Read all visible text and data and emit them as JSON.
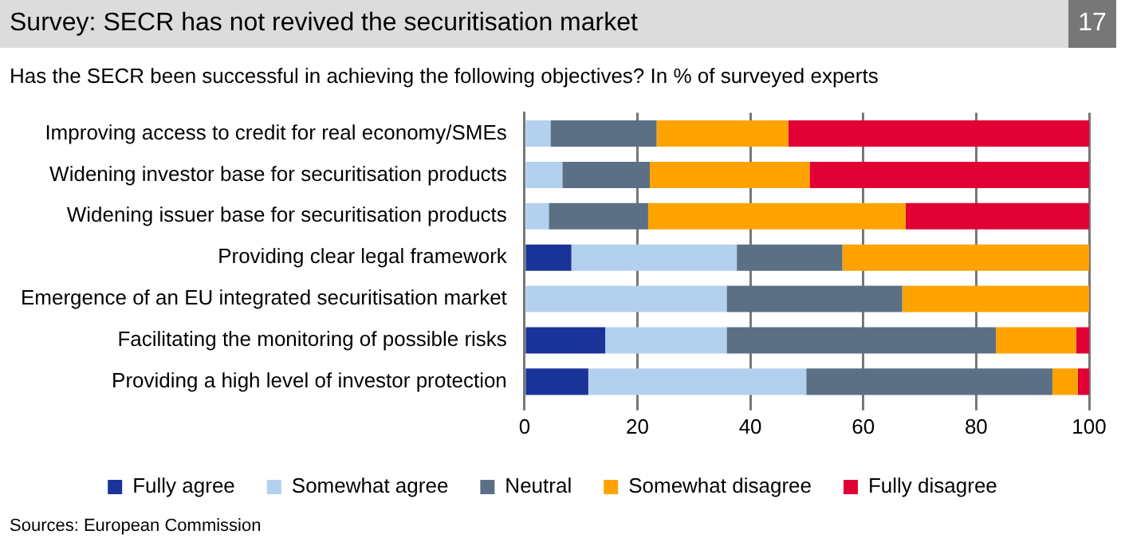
{
  "chart_data": {
    "type": "bar",
    "orientation": "horizontal",
    "stacked": true,
    "title": "Survey: SECR has not revived the securitisation market",
    "subtitle": "Has the SECR been successful in achieving the following objectives? In % of surveyed experts",
    "categories": [
      "Improving access to credit for real economy/SMEs",
      "Widening investor base for securitisation products",
      "Widening issuer base for securitisation products",
      "Providing clear legal framework",
      "Emergence of an EU integrated securitisation market",
      "Facilitating the monitoring of possible risks",
      "Providing a high level of investor protection"
    ],
    "series": [
      {
        "name": "Fully agree",
        "color": "#1a3399",
        "values": [
          0,
          0,
          0,
          8.3,
          0,
          14.3,
          11.3
        ]
      },
      {
        "name": "Somewhat agree",
        "color": "#b3d1ef",
        "values": [
          4.6,
          6.7,
          4.3,
          29.3,
          35.8,
          21.5,
          38.6
        ]
      },
      {
        "name": "Neutral",
        "color": "#5b7085",
        "values": [
          18.8,
          15.5,
          17.6,
          18.7,
          31.1,
          47.7,
          43.6
        ]
      },
      {
        "name": "Somewhat disagree",
        "color": "#ffa300",
        "values": [
          23.3,
          28.3,
          45.6,
          43.7,
          33.1,
          14.2,
          4.5
        ]
      },
      {
        "name": "Fully disagree",
        "color": "#e00034",
        "values": [
          53.3,
          49.5,
          32.5,
          0,
          0,
          2.3,
          2
        ]
      }
    ],
    "xlim": [
      0,
      100
    ],
    "xticks": [
      0,
      20,
      40,
      60,
      80,
      100
    ],
    "grid": "x",
    "legend": "bottom",
    "annotations": [
      "17",
      "Sources: European Commission"
    ]
  }
}
